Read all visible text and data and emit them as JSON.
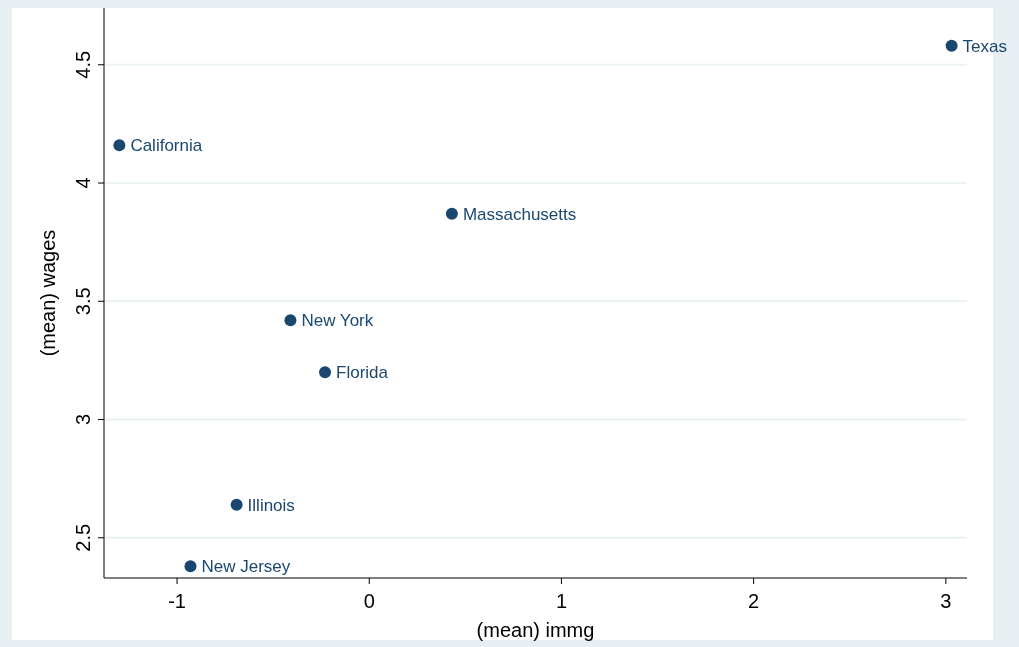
{
  "chart_data": {
    "type": "scatter",
    "xlabel": "(mean) immg",
    "ylabel": "(mean) wages",
    "x": [
      3.03,
      -1.3,
      0.43,
      -0.41,
      -0.23,
      -0.69,
      -0.93
    ],
    "series": [
      {
        "color": "#1a476f",
        "values": [
          4.58,
          4.16,
          3.87,
          3.42,
          3.2,
          2.64,
          2.38
        ]
      }
    ],
    "annotations": [
      {
        "text": "Texas",
        "x": 3.03,
        "y": 4.58
      },
      {
        "text": "California",
        "x": -1.3,
        "y": 4.16
      },
      {
        "text": "Massachusetts",
        "x": 0.43,
        "y": 3.87
      },
      {
        "text": "New York",
        "x": -0.41,
        "y": 3.42
      },
      {
        "text": "Florida",
        "x": -0.23,
        "y": 3.2
      },
      {
        "text": "Illinois",
        "x": -0.69,
        "y": 2.64
      },
      {
        "text": "New Jersey",
        "x": -0.93,
        "y": 2.38
      }
    ],
    "xlim": [
      -1.38,
      3.11
    ],
    "xticks": [
      -1,
      0,
      1,
      2,
      3
    ],
    "ylim": [
      2.33,
      4.74
    ],
    "yticks": [
      2.5,
      3,
      3.5,
      4,
      4.5
    ],
    "grid": "y",
    "marker": "circle"
  }
}
